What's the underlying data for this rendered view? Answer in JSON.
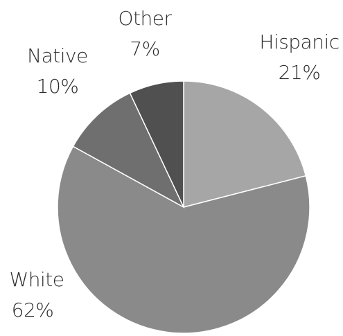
{
  "chart_data": {
    "type": "pie",
    "categories": [
      "Hispanic",
      "White",
      "Native",
      "Other"
    ],
    "values": [
      21,
      62,
      10,
      7
    ],
    "value_labels": [
      "21%",
      "62%",
      "10%",
      "7%"
    ],
    "colors": [
      "#a6a6a6",
      "#8a8a8a",
      "#6f6f6f",
      "#505050"
    ],
    "start": "12 o'clock",
    "direction": "clockwise",
    "legend": "none (labels placed next to slices)"
  }
}
